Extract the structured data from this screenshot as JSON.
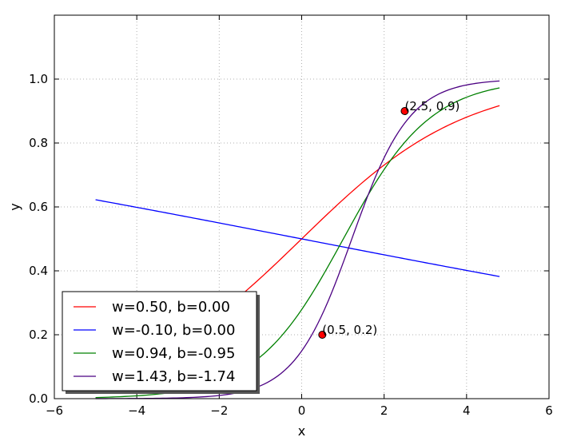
{
  "chart_data": {
    "type": "line",
    "xlabel": "x",
    "ylabel": "y",
    "xlim": [
      -6,
      6
    ],
    "ylim": [
      0,
      1.2
    ],
    "xticks": [
      -6,
      -4,
      -2,
      0,
      2,
      4,
      6
    ],
    "xtick_labels": [
      "−6",
      "−4",
      "−2",
      "0",
      "2",
      "4",
      "6"
    ],
    "yticks": [
      0,
      0.2,
      0.4,
      0.6,
      0.8,
      1.0
    ],
    "ytick_labels": [
      "0.0",
      "0.2",
      "0.4",
      "0.6",
      "0.8",
      "1.0"
    ],
    "grid": true,
    "legend_position": "lower-left",
    "x_range": [
      -5,
      4.8
    ],
    "series": [
      {
        "name": "w=0.50, b=0.00",
        "w": 0.5,
        "b": 0.0,
        "color": "#ff0000"
      },
      {
        "name": "w=-0.10, b=0.00",
        "w": -0.1,
        "b": 0.0,
        "color": "#0000ff"
      },
      {
        "name": "w=0.94, b=-0.95",
        "w": 0.94,
        "b": -0.95,
        "color": "#008000"
      },
      {
        "name": "w=1.43, b=-1.74",
        "w": 1.43,
        "b": -1.74,
        "color": "#4b0082"
      }
    ],
    "points": [
      {
        "x": 2.5,
        "y": 0.9,
        "label": "(2.5, 0.9)",
        "color": "#ff0000"
      },
      {
        "x": 0.5,
        "y": 0.2,
        "label": "(0.5, 0.2)",
        "color": "#ff0000"
      }
    ]
  }
}
